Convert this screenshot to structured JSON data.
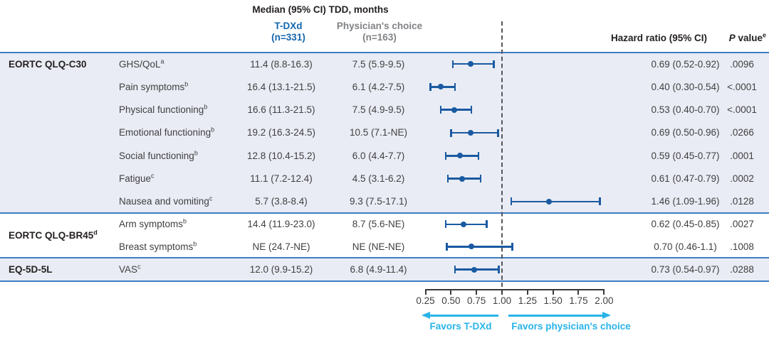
{
  "title": "Median (95% CI) TDD, months",
  "columns": {
    "tdxd_line1": "T-DXd",
    "tdxd_line2": "(n=331)",
    "physician_line1": "Physician's choice",
    "physician_line2": "(n=163)",
    "hazard_ratio": "Hazard ratio (95% CI)",
    "p_value_p": "P",
    "p_value_rest": " value",
    "p_value_sup": "e"
  },
  "colors": {
    "marker_blue": "#1a5aa2",
    "rule_blue": "#3c7dc2",
    "tdxd_header_blue": "#1366ae",
    "physician_header_gray": "#808285",
    "row_shade": "#e9ecf4",
    "cyan_accent": "#29b4e8",
    "text_gray": "#414042",
    "dashed_line": "#55565a"
  },
  "chart_data": {
    "type": "forest",
    "title": "Median (95% CI) TDD, months",
    "xlabel": "Hazard ratio",
    "x_axis": {
      "min": 0.25,
      "max": 2.0,
      "reference": 1.0,
      "ticks": [
        0.25,
        0.5,
        0.75,
        1.0,
        1.25,
        1.5,
        1.75,
        2.0
      ],
      "tick_labels": [
        "0.25",
        "0.50",
        "0.75",
        "1.00",
        "1.25",
        "1.50",
        "1.75",
        "2.00"
      ],
      "favors_left": "Favors T-DXd",
      "favors_right": "Favors physician's choice"
    },
    "sections": [
      {
        "group": "EORTC QLQ-C30",
        "group_sup": "",
        "shaded": true,
        "rows": [
          {
            "label": "GHS/QoL",
            "sup": "a",
            "tdxd_median": "11.4 (8.8-16.3)",
            "physician_median": "7.5 (5.9-9.5)",
            "hr": 0.69,
            "ci_low": 0.52,
            "ci_high": 0.92,
            "hr_ci": "0.69 (0.52-0.92)",
            "p": ".0096"
          },
          {
            "label": "Pain symptoms",
            "sup": "b",
            "tdxd_median": "16.4 (13.1-21.5)",
            "physician_median": "6.1 (4.2-7.5)",
            "hr": 0.4,
            "ci_low": 0.3,
            "ci_high": 0.54,
            "hr_ci": "0.40 (0.30-0.54)",
            "p": "<.0001"
          },
          {
            "label": "Physical functioning",
            "sup": "b",
            "tdxd_median": "16.6 (11.3-21.5)",
            "physician_median": "7.5 (4.9-9.5)",
            "hr": 0.53,
            "ci_low": 0.4,
            "ci_high": 0.7,
            "hr_ci": "0.53 (0.40-0.70)",
            "p": "<.0001"
          },
          {
            "label": "Emotional functioning",
            "sup": "b",
            "tdxd_median": "19.2 (16.3-24.5)",
            "physician_median": "10.5 (7.1-NE)",
            "hr": 0.69,
            "ci_low": 0.5,
            "ci_high": 0.96,
            "hr_ci": "0.69 (0.50-0.96)",
            "p": ".0266"
          },
          {
            "label": "Social functioning",
            "sup": "b",
            "tdxd_median": "12.8 (10.4-15.2)",
            "physician_median": "6.0 (4.4-7.7)",
            "hr": 0.59,
            "ci_low": 0.45,
            "ci_high": 0.77,
            "hr_ci": "0.59 (0.45-0.77)",
            "p": ".0001"
          },
          {
            "label": "Fatigue",
            "sup": "c",
            "tdxd_median": "11.1 (7.2-12.4)",
            "physician_median": "4.5 (3.1-6.2)",
            "hr": 0.61,
            "ci_low": 0.47,
            "ci_high": 0.79,
            "hr_ci": "0.61 (0.47-0.79)",
            "p": ".0002"
          },
          {
            "label": "Nausea and vomiting",
            "sup": "c",
            "tdxd_median": "5.7 (3.8-8.4)",
            "physician_median": "9.3 (7.5-17.1)",
            "hr": 1.46,
            "ci_low": 1.09,
            "ci_high": 1.96,
            "hr_ci": "1.46 (1.09-1.96)",
            "p": ".0128"
          }
        ]
      },
      {
        "group": "EORTC QLQ-BR45",
        "group_sup": "d",
        "shaded": false,
        "rows": [
          {
            "label": "Arm symptoms",
            "sup": "b",
            "tdxd_median": "14.4 (11.9-23.0)",
            "physician_median": "8.7 (5.6-NE)",
            "hr": 0.62,
            "ci_low": 0.45,
            "ci_high": 0.85,
            "hr_ci": "0.62 (0.45-0.85)",
            "p": ".0027"
          },
          {
            "label": "Breast symptoms",
            "sup": "b",
            "tdxd_median": "NE (24.7-NE)",
            "physician_median": "NE (NE-NE)",
            "hr": 0.7,
            "ci_low": 0.46,
            "ci_high": 1.1,
            "hr_ci": "0.70 (0.46-1.1)",
            "p": ".1008"
          }
        ]
      },
      {
        "group": "EQ-5D-5L",
        "group_sup": "",
        "shaded": true,
        "rows": [
          {
            "label": "VAS",
            "sup": "c",
            "tdxd_median": "12.0 (9.9-15.2)",
            "physician_median": "6.8 (4.9-11.4)",
            "hr": 0.73,
            "ci_low": 0.54,
            "ci_high": 0.97,
            "hr_ci": "0.73 (0.54-0.97)",
            "p": ".0288"
          }
        ]
      }
    ]
  }
}
